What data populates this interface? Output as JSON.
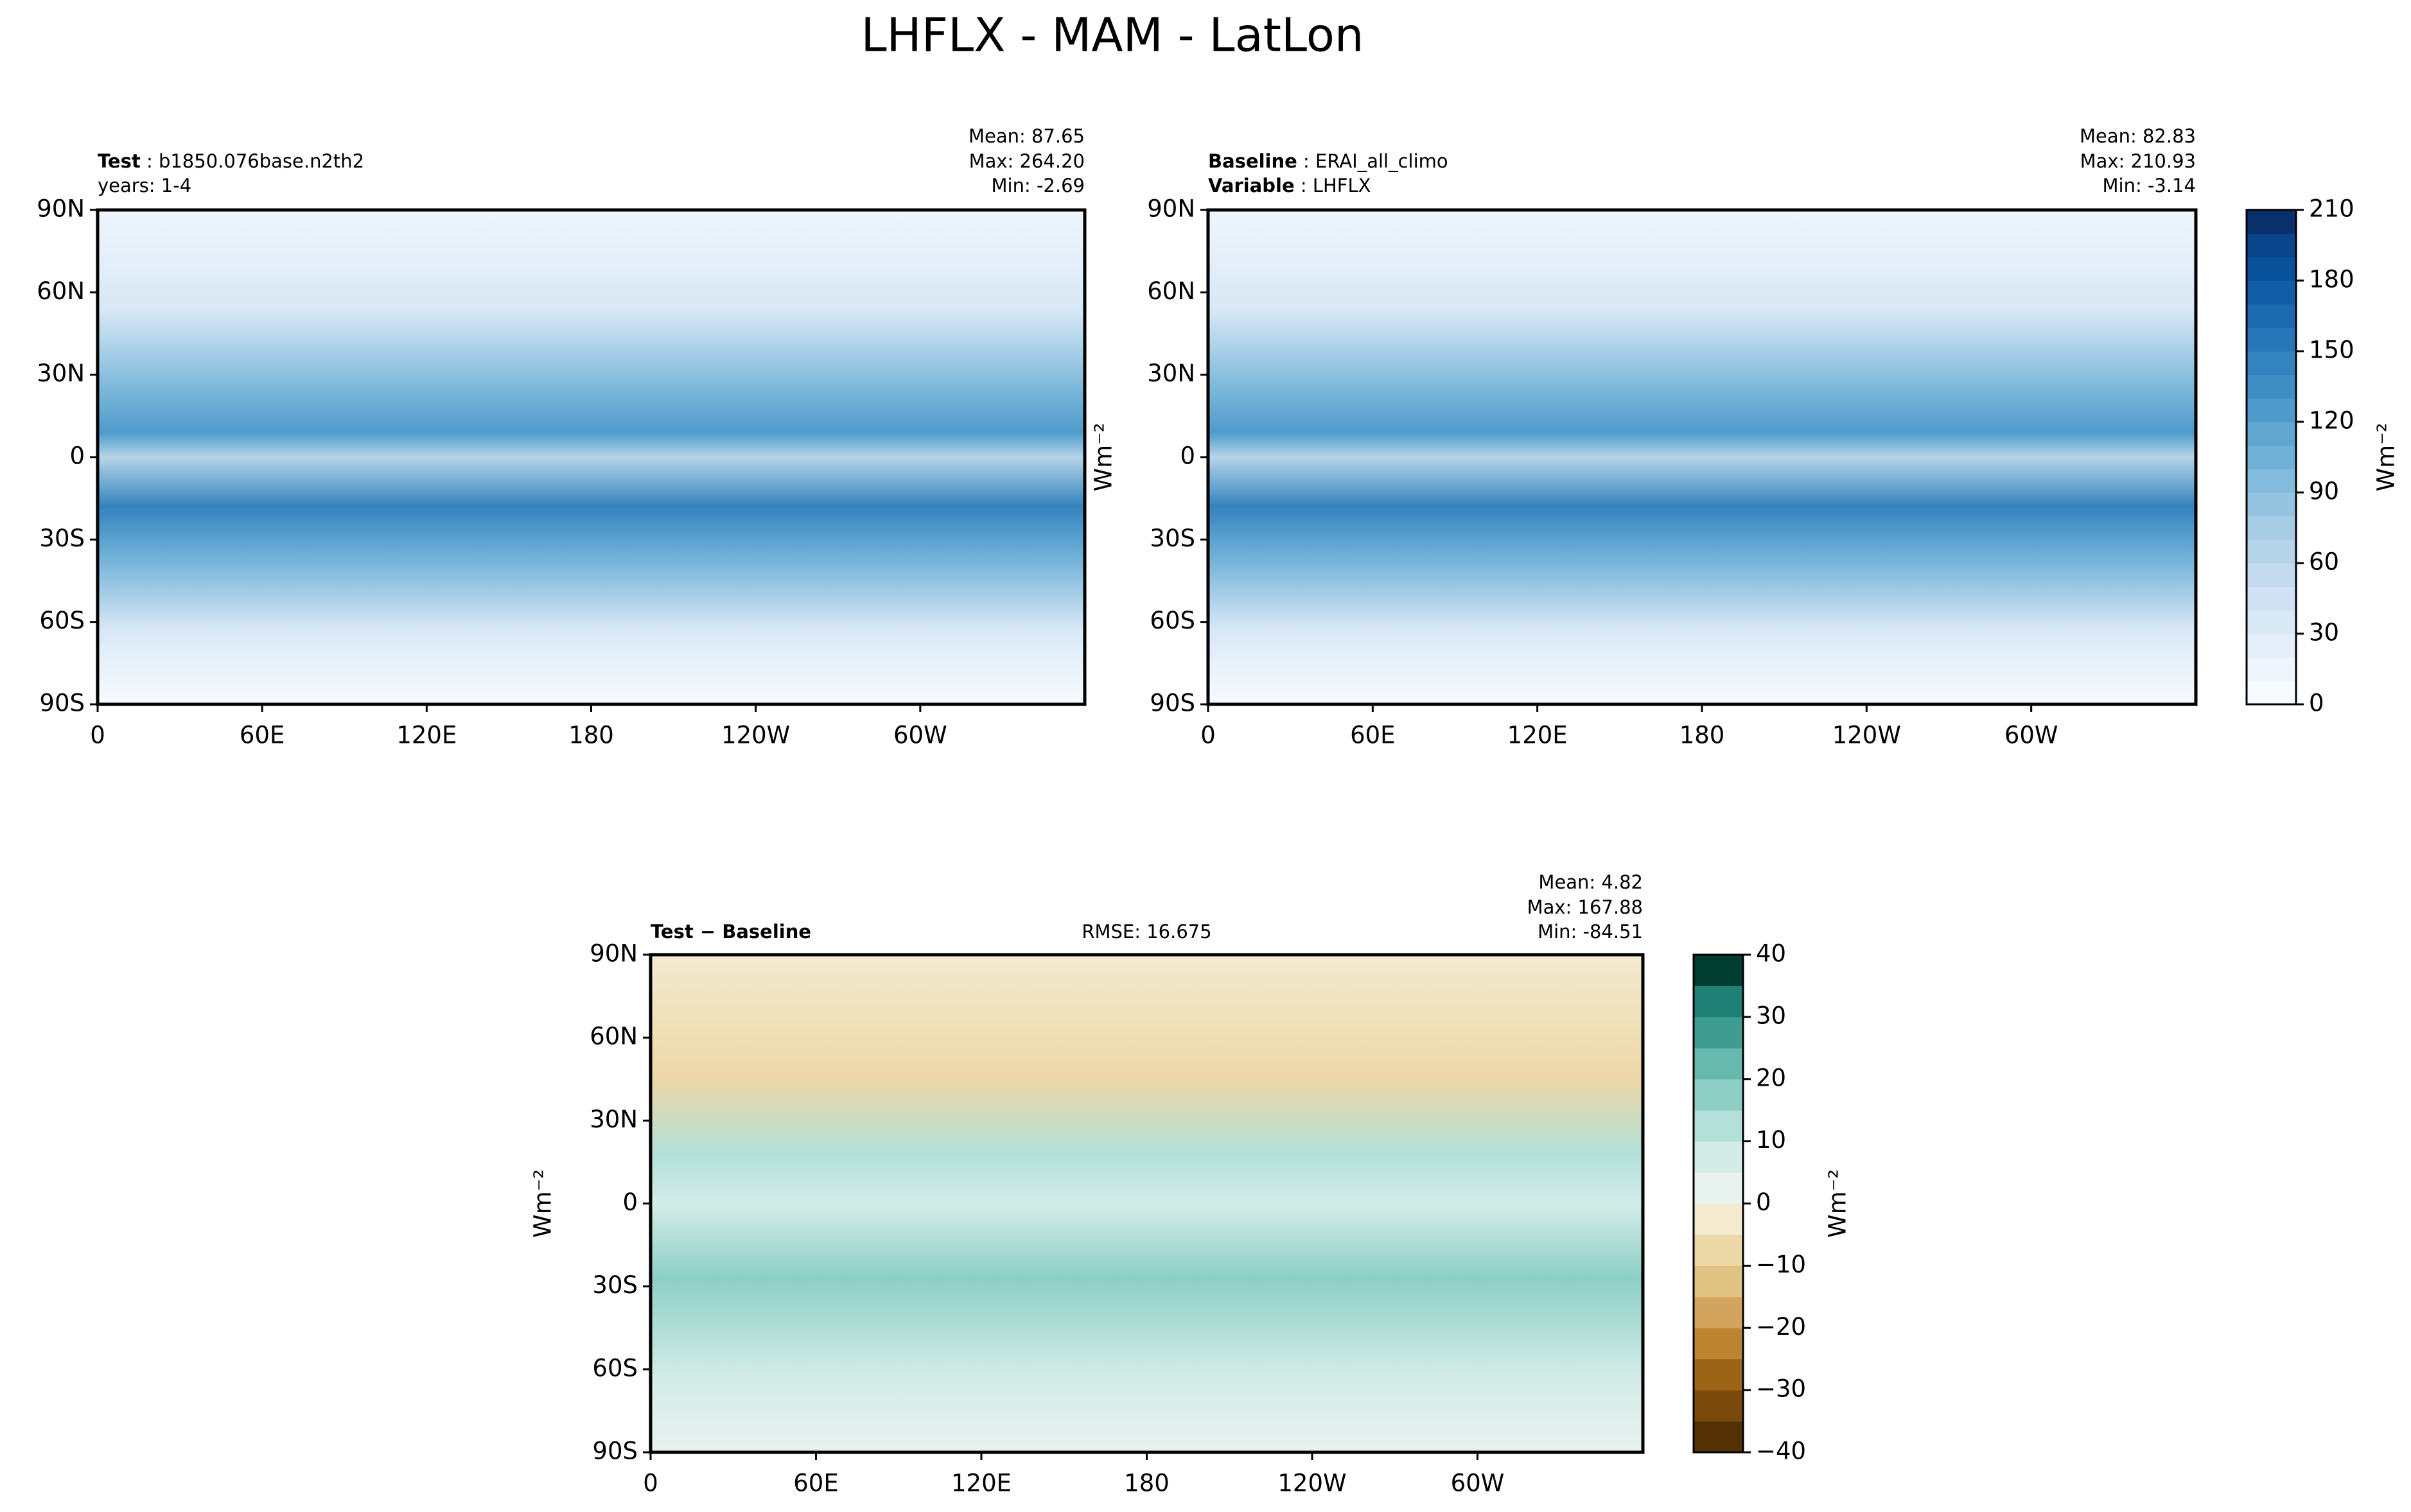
{
  "figure_title": "LHFLX - MAM - LatLon",
  "chart_data": [
    {
      "type": "contour-map",
      "left_labels": [
        [
          {
            "bold": "Test",
            "text": " : b1850.076base.n2th2"
          }
        ],
        [
          {
            "bold": "",
            "text": "years: 1-4"
          }
        ]
      ],
      "stats": [
        "Mean: 87.65",
        "Max: 264.20",
        "Min: -2.69"
      ],
      "xlim": [
        0,
        360
      ],
      "ylim": [
        -90,
        90
      ],
      "xticks": [
        0,
        {
          "value": 60,
          "label": "60E"
        },
        {
          "value": 120,
          "label": "120E"
        },
        180,
        {
          "value": 240,
          "label": "120W"
        },
        {
          "value": 300,
          "label": "60W"
        }
      ],
      "yticks": [
        {
          "value": 90,
          "label": "90N"
        },
        {
          "value": 60,
          "label": "60N"
        },
        {
          "value": 30,
          "label": "30N"
        },
        0,
        {
          "value": -30,
          "label": "30S"
        },
        {
          "value": -60,
          "label": "60S"
        },
        {
          "value": -90,
          "label": "90S"
        }
      ],
      "palette": "blues"
    },
    {
      "type": "contour-map",
      "left_labels": [
        [
          {
            "bold": "Baseline",
            "text": " : ERAI_all_climo"
          }
        ],
        [
          {
            "bold": "Variable",
            "text": " : LHFLX"
          }
        ]
      ],
      "stats": [
        "Mean: 82.83",
        "Max: 210.93",
        "Min: -3.14"
      ],
      "ylabel": "Wm⁻²",
      "xlim": [
        0,
        360
      ],
      "ylim": [
        -90,
        90
      ],
      "xticks": [
        0,
        {
          "value": 60,
          "label": "60E"
        },
        {
          "value": 120,
          "label": "120E"
        },
        180,
        {
          "value": 240,
          "label": "120W"
        },
        {
          "value": 300,
          "label": "60W"
        }
      ],
      "yticks": [
        {
          "value": 90,
          "label": "90N"
        },
        {
          "value": 60,
          "label": "60N"
        },
        {
          "value": 30,
          "label": "30N"
        },
        0,
        {
          "value": -30,
          "label": "30S"
        },
        {
          "value": -60,
          "label": "60S"
        },
        {
          "value": -90,
          "label": "90S"
        }
      ],
      "palette": "blues",
      "colorbar": {
        "label": "Wm⁻²",
        "lim": [
          0,
          210
        ],
        "ticks": [
          0,
          30,
          60,
          90,
          120,
          150,
          180,
          210
        ],
        "colors": [
          "#f7fbff",
          "#eef5fc",
          "#e3eef9",
          "#d9e8f5",
          "#cfe1f2",
          "#c4daee",
          "#b6d4e9",
          "#a6cde4",
          "#94c4df",
          "#82bbdb",
          "#6fb0d7",
          "#5fa6d1",
          "#4f9bcb",
          "#408fc4",
          "#3383be",
          "#2777b8",
          "#1b6aaf",
          "#125ea6",
          "#0a519c",
          "#08458a",
          "#08306b"
        ]
      }
    },
    {
      "type": "contour-map",
      "left_labels": [
        [
          {
            "bold": "Test − Baseline",
            "text": ""
          }
        ]
      ],
      "center_label": "RMSE: 16.675",
      "stats": [
        "Mean:  4.82",
        "Max: 167.88",
        "Min: -84.51"
      ],
      "ylabel": "Wm⁻²",
      "xlim": [
        0,
        360
      ],
      "ylim": [
        -90,
        90
      ],
      "xticks": [
        0,
        {
          "value": 60,
          "label": "60E"
        },
        {
          "value": 120,
          "label": "120E"
        },
        180,
        {
          "value": 240,
          "label": "120W"
        },
        {
          "value": 300,
          "label": "60W"
        }
      ],
      "yticks": [
        {
          "value": 90,
          "label": "90N"
        },
        {
          "value": 60,
          "label": "60N"
        },
        {
          "value": 30,
          "label": "30N"
        },
        0,
        {
          "value": -30,
          "label": "30S"
        },
        {
          "value": -60,
          "label": "60S"
        },
        {
          "value": -90,
          "label": "90S"
        }
      ],
      "palette": "diff",
      "colorbar": {
        "label": "Wm⁻²",
        "lim": [
          -40,
          40
        ],
        "ticks": [
          {
            "value": -40,
            "label": "−40"
          },
          {
            "value": -30,
            "label": "−30"
          },
          {
            "value": -20,
            "label": "−20"
          },
          {
            "value": -10,
            "label": "−10"
          },
          0,
          10,
          20,
          30,
          40
        ],
        "colors": [
          "#543005",
          "#7a4a0d",
          "#9c6417",
          "#bd8532",
          "#d2a45e",
          "#e0c283",
          "#ecd8a7",
          "#f4ead0",
          "#e8f2ef",
          "#d3ece8",
          "#b3e1da",
          "#8dcfc5",
          "#66b9ac",
          "#3f9c91",
          "#1f8076",
          "#003c30"
        ]
      }
    }
  ]
}
